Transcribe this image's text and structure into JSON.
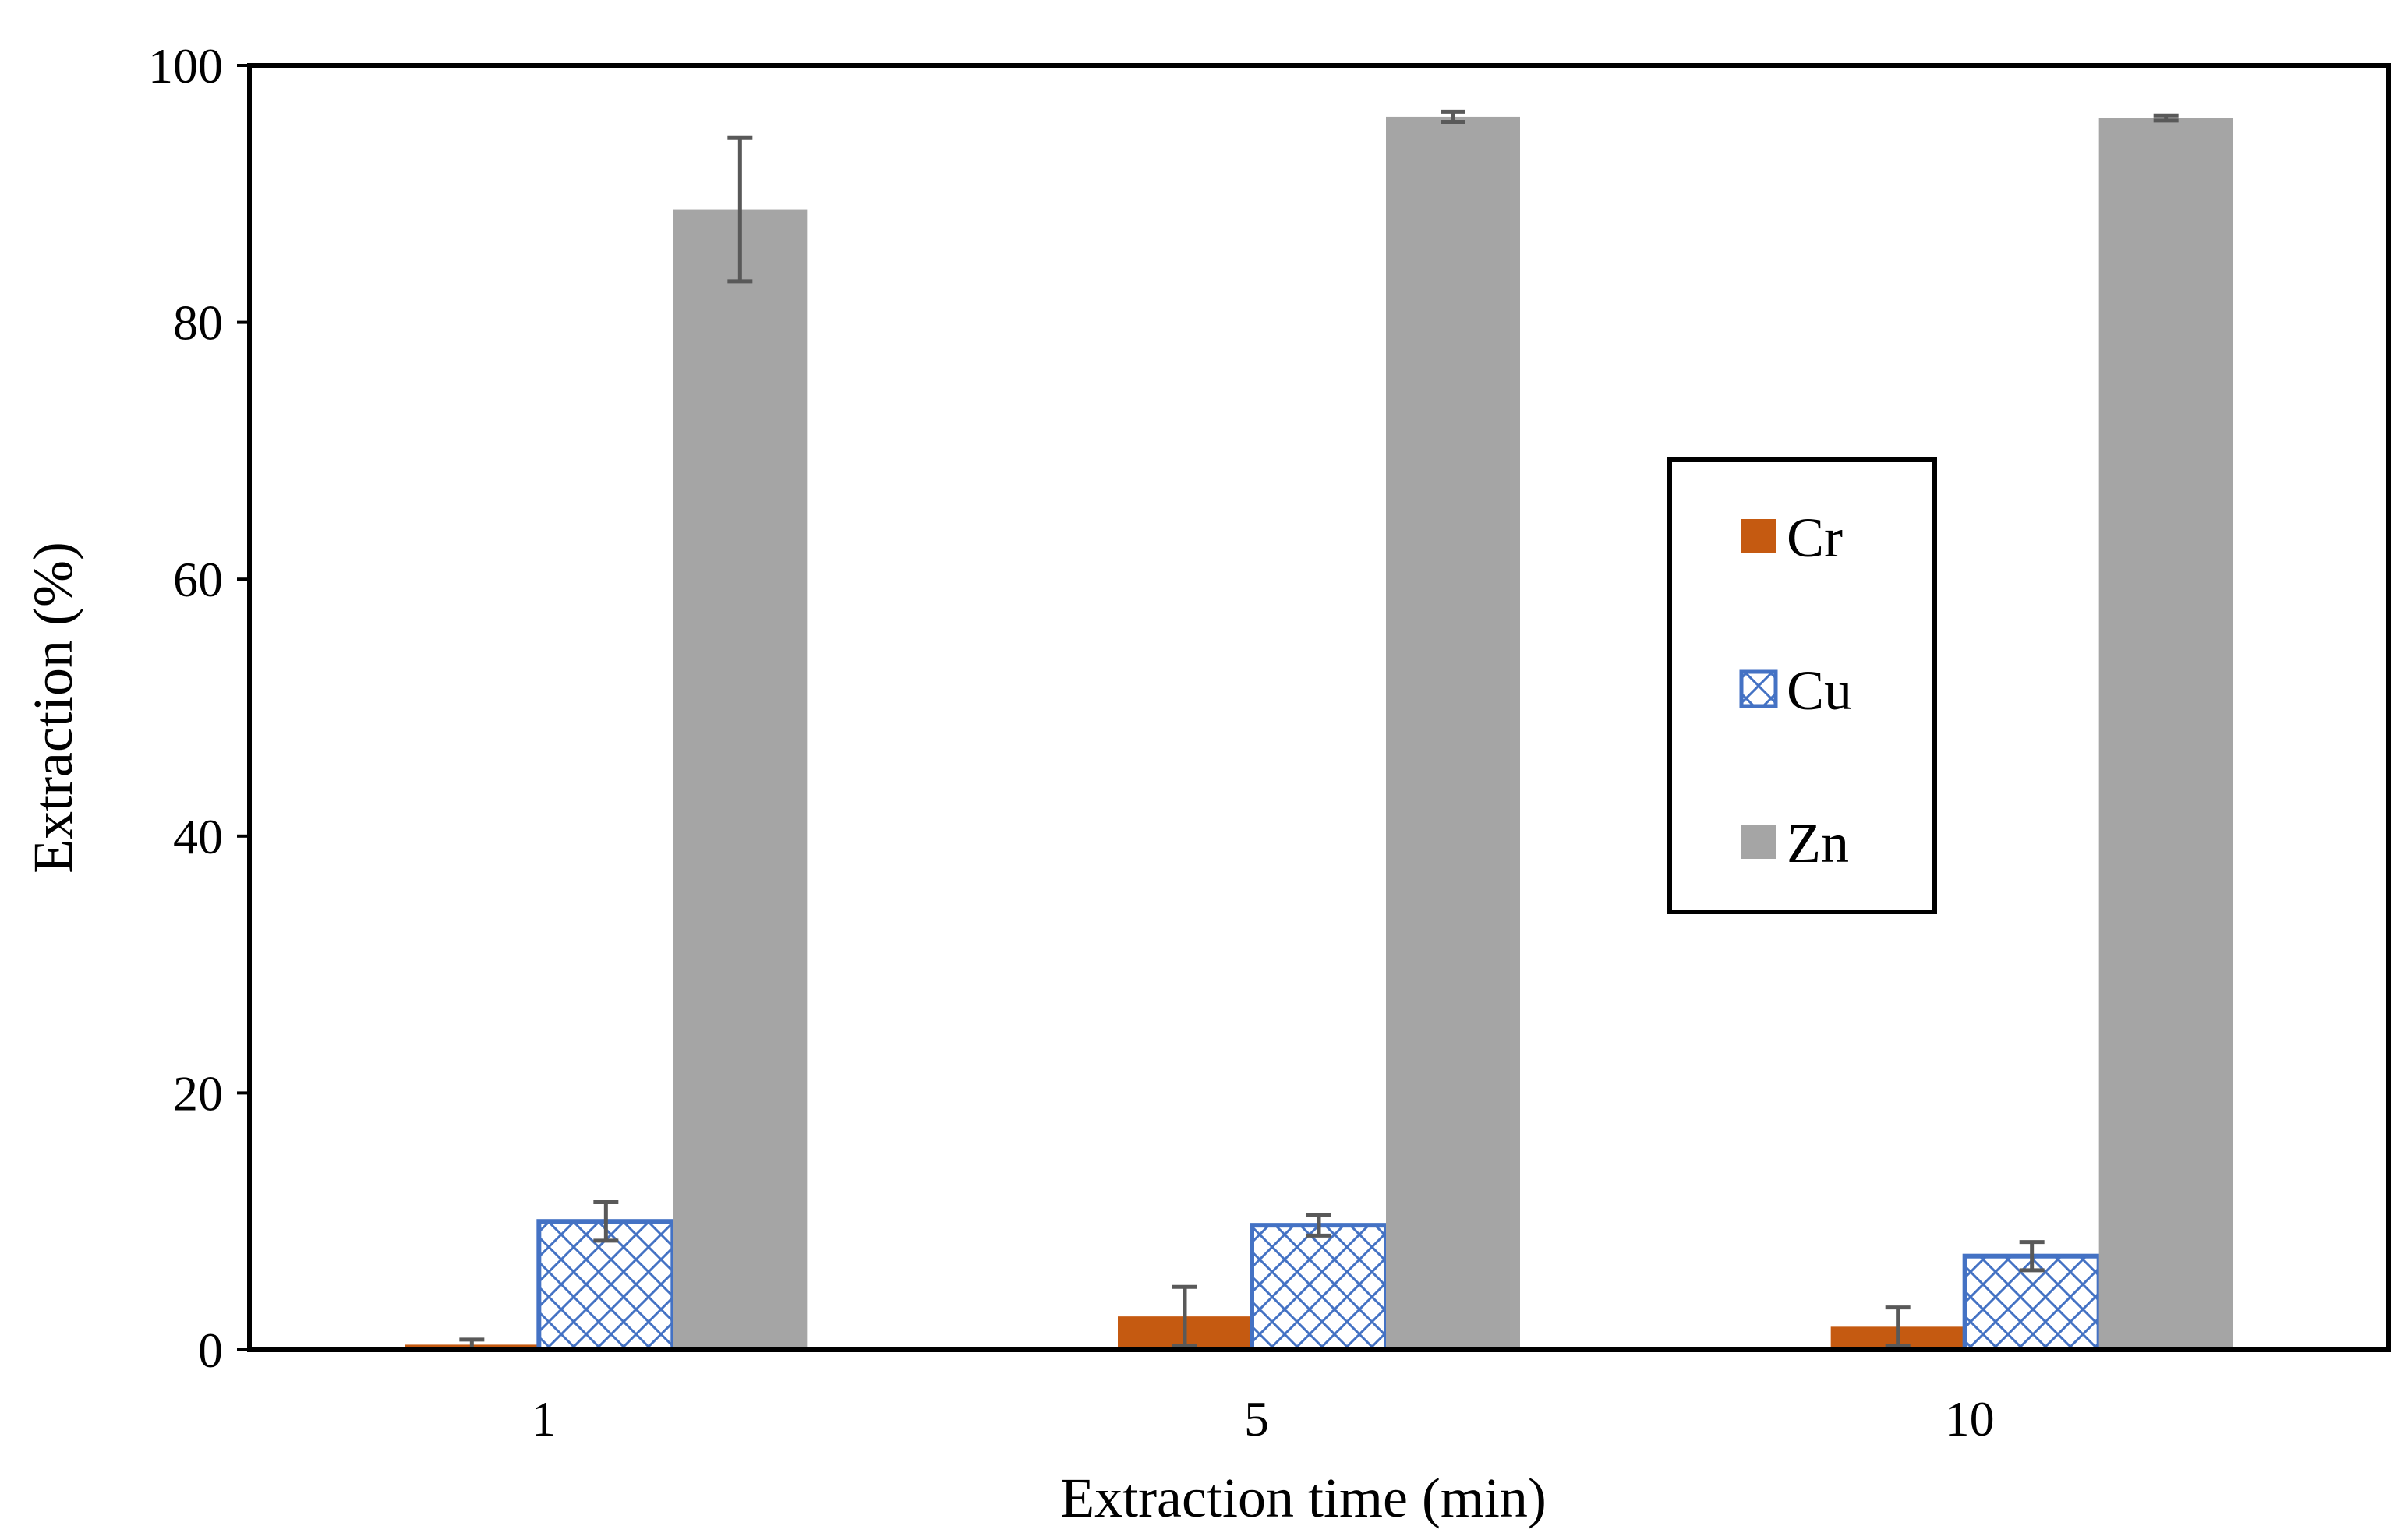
{
  "chart_data": {
    "type": "bar",
    "title": "",
    "xlabel": "Extraction time (min)",
    "ylabel": "Extraction (%)",
    "categories": [
      "1",
      "5",
      "10"
    ],
    "ylim": [
      0,
      100
    ],
    "yticks": [
      0,
      20,
      40,
      60,
      80,
      100
    ],
    "grid": false,
    "legend_position": "center-right",
    "series": [
      {
        "name": "Cr",
        "color": "#C55A11",
        "fill": "solid",
        "values": [
          0.4,
          2.6,
          1.8
        ],
        "errors": [
          0.4,
          2.3,
          1.5
        ]
      },
      {
        "name": "Cu",
        "color": "#4472C4",
        "fill": "crosshatch",
        "values": [
          10.0,
          9.7,
          7.3
        ],
        "errors": [
          1.5,
          0.8,
          1.1
        ]
      },
      {
        "name": "Zn",
        "color": "#A5A5A5",
        "fill": "solid",
        "values": [
          88.8,
          96.0,
          95.9
        ],
        "errors": [
          5.6,
          0.4,
          0.2
        ]
      }
    ],
    "error_bar_color": "#595959"
  }
}
